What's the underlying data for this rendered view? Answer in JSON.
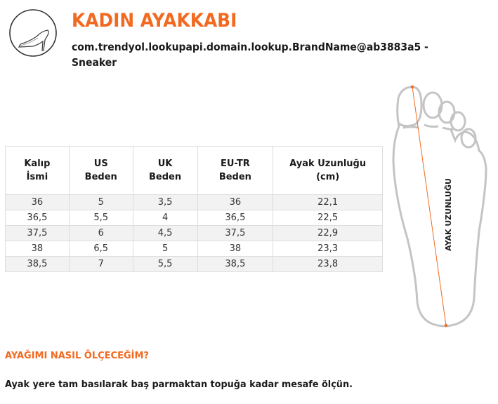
{
  "header": {
    "title": "KADIN AYAKKABI",
    "subtitle": "com.trendyol.lookupapi.domain.lookup.BrandName@ab3883a5 - Sneaker",
    "logo_icon": "high-heel-shoe-icon"
  },
  "colors": {
    "accent": "#f26a21"
  },
  "table": {
    "headers": [
      [
        "Kalıp",
        "İsmi"
      ],
      [
        "US",
        "Beden"
      ],
      [
        "UK",
        "Beden"
      ],
      [
        "EU-TR",
        "Beden"
      ],
      [
        "Ayak Uzunluğu",
        "(cm)"
      ]
    ],
    "rows": [
      [
        "36",
        "5",
        "3,5",
        "36",
        "22,1"
      ],
      [
        "36,5",
        "5,5",
        "4",
        "36,5",
        "22,5"
      ],
      [
        "37,5",
        "6",
        "4,5",
        "37,5",
        "22,9"
      ],
      [
        "38",
        "6,5",
        "5",
        "38",
        "23,3"
      ],
      [
        "38,5",
        "7",
        "5,5",
        "38,5",
        "23,8"
      ]
    ]
  },
  "diagram": {
    "label": "AYAK UZUNLUĞU"
  },
  "help": {
    "question": "AYAĞIMI NASIL ÖLÇECEĞİM?",
    "answer": "Ayak yere tam basılarak baş parmaktan topuğa kadar mesafe ölçün."
  }
}
